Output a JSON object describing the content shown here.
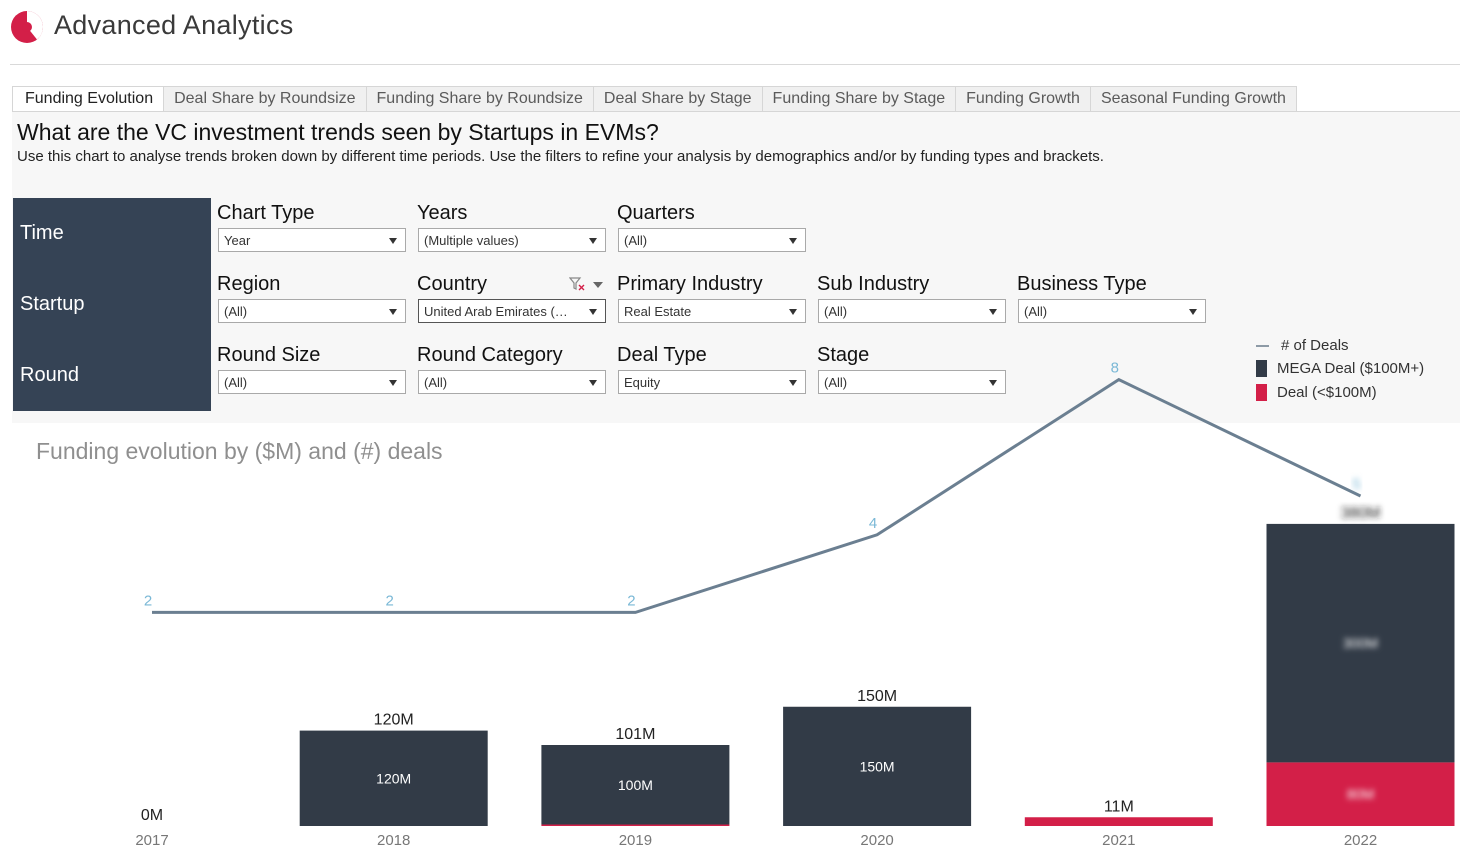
{
  "app": {
    "title": "Advanced Analytics",
    "brand_color": "#d31f48"
  },
  "tabs": [
    {
      "label": "Funding Evolution",
      "active": true
    },
    {
      "label": "Deal Share by Roundsize",
      "active": false
    },
    {
      "label": "Funding Share by Roundsize",
      "active": false
    },
    {
      "label": "Deal Share by Stage",
      "active": false
    },
    {
      "label": "Funding Share by Stage",
      "active": false
    },
    {
      "label": "Funding Growth",
      "active": false
    },
    {
      "label": "Seasonal Funding Growth",
      "active": false
    }
  ],
  "dashboard": {
    "question": "What are the VC investment trends seen by Startups in EVMs?",
    "description": "Use this chart to analyse trends broken down by different time periods. Use the filters to refine your analysis by demographics and/or by funding types and brackets."
  },
  "filter_groups": {
    "time": {
      "label": "Time",
      "filters": [
        {
          "label": "Chart Type",
          "value": "Year"
        },
        {
          "label": "Years",
          "value": "(Multiple values)"
        },
        {
          "label": "Quarters",
          "value": "(All)"
        }
      ]
    },
    "startup": {
      "label": "Startup",
      "filters": [
        {
          "label": "Region",
          "value": "(All)"
        },
        {
          "label": "Country",
          "value": "United Arab Emirates (…"
        },
        {
          "label": "Primary Industry",
          "value": "Real Estate"
        },
        {
          "label": "Sub Industry",
          "value": "(All)"
        },
        {
          "label": "Business Type",
          "value": "(All)"
        }
      ]
    },
    "round": {
      "label": "Round",
      "filters": [
        {
          "label": "Round Size",
          "value": "(All)"
        },
        {
          "label": "Round Category",
          "value": "(All)"
        },
        {
          "label": "Deal Type",
          "value": "Equity"
        },
        {
          "label": "Stage",
          "value": "(All)"
        }
      ]
    }
  },
  "legend": [
    {
      "label": "# of Deals",
      "kind": "line",
      "color": "#6b7f91"
    },
    {
      "label": "MEGA Deal ($100M+)",
      "kind": "bar",
      "color": "#323b47"
    },
    {
      "label": "Deal (<$100M)",
      "kind": "bar",
      "color": "#d31f48"
    }
  ],
  "chart_data": {
    "type": "bar",
    "title": "Funding evolution by ($M) and (#) deals",
    "categories": [
      "2017",
      "2018",
      "2019",
      "2020",
      "2021",
      "2022"
    ],
    "series": [
      {
        "name": "MEGA Deal ($100M+)",
        "values": [
          0,
          120,
          100,
          150,
          0,
          300
        ],
        "color": "#323b47",
        "segment_labels": [
          "",
          "120M",
          "100M",
          "150M",
          "",
          "300M"
        ]
      },
      {
        "name": "Deal (<$100M)",
        "values": [
          0,
          0,
          1,
          0,
          11,
          80
        ],
        "color": "#d31f48",
        "segment_labels": [
          "",
          "",
          "",
          "",
          "",
          "80M"
        ]
      }
    ],
    "total_labels": [
      "0M",
      "120M",
      "101M",
      "150M",
      "11M",
      "380M"
    ],
    "line": {
      "name": "# of Deals",
      "values": [
        2,
        2,
        2,
        4,
        8,
        5
      ],
      "labels": [
        "2",
        "2",
        "2",
        "4",
        "8",
        "5"
      ],
      "color": "#6b7f91",
      "label_color": "#7ab8d6"
    },
    "ylim": [
      0,
      400
    ],
    "line_ylim": [
      0,
      10
    ],
    "blurred_categories": [
      "2022"
    ],
    "grid": false
  }
}
